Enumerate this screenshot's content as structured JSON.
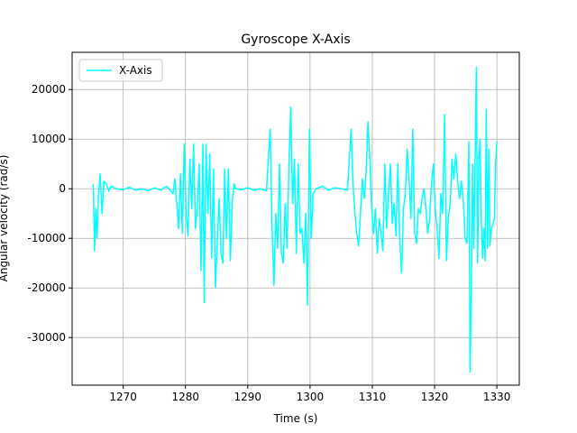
{
  "chart_data": {
    "type": "line",
    "title": "Gyroscope X-Axis",
    "xlabel": "Time (s)",
    "ylabel": "Angular velocity (rad/s)",
    "x": [
      1265.2,
      1265.4,
      1265.6,
      1265.8,
      1266.0,
      1266.3,
      1266.6,
      1266.9,
      1267.3,
      1267.7,
      1268,
      1269,
      1270,
      1271,
      1272,
      1273,
      1274,
      1275,
      1276,
      1277,
      1278,
      1278.3,
      1278.6,
      1278.9,
      1279.2,
      1279.5,
      1279.8,
      1280.1,
      1280.4,
      1280.7,
      1281.0,
      1281.3,
      1281.6,
      1281.9,
      1282.2,
      1282.5,
      1282.8,
      1283.0,
      1283.3,
      1283.6,
      1283.9,
      1284.2,
      1284.5,
      1284.8,
      1285.1,
      1285.4,
      1285.7,
      1286.0,
      1286.3,
      1286.6,
      1286.9,
      1287.2,
      1287.5,
      1287.8,
      1288,
      1289,
      1290,
      1291,
      1292,
      1293,
      1293.6,
      1293.9,
      1294.2,
      1294.5,
      1294.8,
      1295.1,
      1295.4,
      1295.7,
      1296.0,
      1296.3,
      1296.6,
      1296.9,
      1297.2,
      1297.5,
      1297.8,
      1298.1,
      1298.4,
      1298.7,
      1299.0,
      1299.3,
      1299.6,
      1299.9,
      1300.2,
      1300.5,
      1301,
      1302,
      1303,
      1304,
      1305,
      1306,
      1306.6,
      1306.9,
      1307.2,
      1307.5,
      1307.8,
      1308.1,
      1308.4,
      1308.7,
      1309.0,
      1309.3,
      1309.6,
      1309.9,
      1310.2,
      1310.5,
      1310.8,
      1311.1,
      1311.4,
      1311.7,
      1312.0,
      1312.3,
      1312.6,
      1312.9,
      1313.2,
      1313.5,
      1313.8,
      1314.1,
      1314.4,
      1314.7,
      1315.0,
      1315.3,
      1315.6,
      1315.9,
      1316.2,
      1316.5,
      1316.8,
      1317.1,
      1317.4,
      1317.7,
      1318.0,
      1318.3,
      1318.6,
      1318.9,
      1319.2,
      1319.5,
      1319.8,
      1320.1,
      1320.4,
      1320.7,
      1321.0,
      1321.3,
      1321.6,
      1321.9,
      1322.2,
      1322.5,
      1322.8,
      1323.1,
      1323.4,
      1323.7,
      1324.0,
      1324.3,
      1324.6,
      1324.9,
      1325.2,
      1325.5,
      1325.7,
      1325.9,
      1326.1,
      1326.3,
      1326.5,
      1326.7,
      1326.9,
      1327.1,
      1327.3,
      1327.5,
      1327.7,
      1327.9,
      1328.1,
      1328.3,
      1328.5,
      1328.7,
      1328.9,
      1329.1,
      1329.4,
      1329.6,
      1329.8,
      1330.0
    ],
    "series": [
      {
        "name": "X-Axis",
        "color": "#00ffff",
        "values": [
          1000,
          -12500,
          -4000,
          -10000,
          -2000,
          3000,
          -5000,
          1500,
          1000,
          -500,
          500,
          0,
          -200,
          300,
          -300,
          0,
          -400,
          200,
          -300,
          500,
          -1000,
          2000,
          -3000,
          -8000,
          3000,
          -9000,
          9000,
          -5000,
          -9500,
          6000,
          -4000,
          9000,
          -8000,
          -4000,
          5000,
          -16500,
          9000,
          -23000,
          9000,
          -5000,
          7000,
          -14000,
          4000,
          -20000,
          -11000,
          -2000,
          -13000,
          -15000,
          4000,
          -10000,
          4000,
          -14500,
          -3000,
          1000,
          0,
          -200,
          200,
          -300,
          0,
          -400,
          12000,
          -8000,
          -19500,
          -5000,
          -12000,
          5000,
          -13000,
          -15000,
          -3000,
          -12000,
          4000,
          16500,
          -3000,
          6000,
          -13000,
          5000,
          -9000,
          -8000,
          -15000,
          -5000,
          -23500,
          12000,
          -10000,
          -1000,
          0,
          500,
          -300,
          200,
          0,
          -300,
          12000,
          1000,
          -5000,
          -9000,
          -11500,
          -5000,
          2000,
          -2000,
          3000,
          13500,
          6000,
          -4000,
          -9000,
          -4000,
          -13000,
          -6000,
          -9000,
          -12500,
          5000,
          -8000,
          -1000,
          5000,
          -7000,
          -3000,
          -9500,
          5000,
          -10000,
          -17000,
          -4000,
          -1000,
          8000,
          2000,
          -6000,
          12000,
          -9000,
          -11000,
          -4000,
          -5000,
          -2000,
          0,
          -4000,
          -9000,
          -6000,
          1000,
          5000,
          -4000,
          -8000,
          -14000,
          -1000,
          -5000,
          15000,
          -14500,
          -6000,
          -3000,
          6000,
          2000,
          7000,
          1500,
          -2000,
          1500,
          -2000,
          -10000,
          -11000,
          9500,
          -37000,
          -20000,
          5000,
          -12000,
          5000,
          24500,
          -15000,
          6000,
          10000,
          -6000,
          -14000,
          -8000,
          -14500,
          16000,
          -12000,
          8000,
          -11500,
          -8000,
          -7000,
          -6000,
          5000,
          9500
        ]
      }
    ],
    "xlim": [
      1261.8,
      1333.6
    ],
    "ylim": [
      -39600,
      27500
    ],
    "xticks": [
      1270,
      1280,
      1290,
      1300,
      1310,
      1320,
      1330
    ],
    "yticks": [
      -30000,
      -20000,
      -10000,
      0,
      10000,
      20000
    ],
    "grid": true,
    "legend": "upper left"
  }
}
